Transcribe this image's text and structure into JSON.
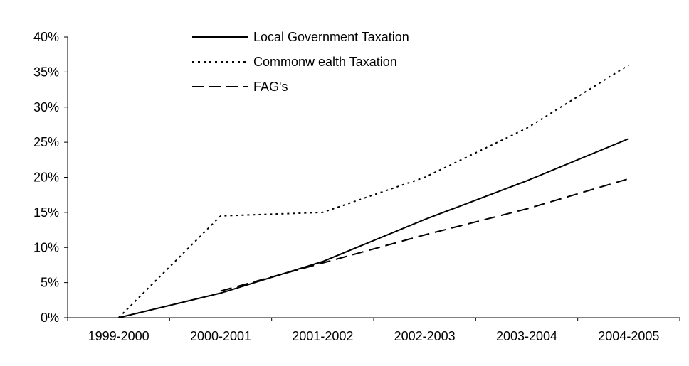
{
  "chart_data": {
    "type": "line",
    "categories": [
      "1999-2000",
      "2000-2001",
      "2001-2002",
      "2002-2003",
      "2003-2004",
      "2004-2005"
    ],
    "ylim": [
      0,
      40
    ],
    "y_ticks": [
      "0%",
      "5%",
      "10%",
      "15%",
      "20%",
      "25%",
      "30%",
      "35%",
      "40%"
    ],
    "grid": false,
    "legend_placement": "top-left",
    "series": [
      {
        "name": "Local Government Taxation",
        "style": "solid",
        "color": "#000000",
        "values": [
          0,
          3.5,
          8,
          14,
          19.5,
          25.5
        ]
      },
      {
        "name": "Commonw ealth Taxation",
        "style": "dotted",
        "color": "#000000",
        "values": [
          0,
          14.5,
          15,
          20,
          27,
          36
        ]
      },
      {
        "name": "FAG's",
        "style": "dashed",
        "color": "#000000",
        "values": [
          null,
          3.8,
          7.8,
          11.8,
          15.5,
          19.8
        ]
      }
    ]
  }
}
